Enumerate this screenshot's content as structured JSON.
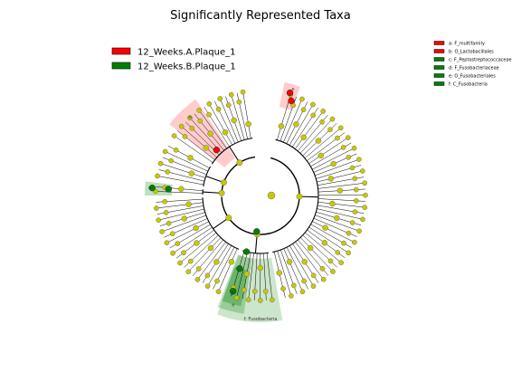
{
  "chart_data": {
    "type": "cladogram",
    "title": "Significantly Represented Taxa",
    "groups": [
      {
        "name": "12_Weeks.A.Plaque_1",
        "color": "#ff0000"
      },
      {
        "name": "12_Weeks.B.Plaque_1",
        "color": "#008000"
      }
    ],
    "biomarkers": [
      {
        "label": "a: F_multifamily",
        "group": "12_Weeks.A.Plaque_1",
        "color": "#ff0000"
      },
      {
        "label": "b: O_Lactobacillales",
        "group": "12_Weeks.A.Plaque_1",
        "color": "#ff0000"
      },
      {
        "label": "c: F_Peptostreptococcaceae",
        "group": "12_Weeks.B.Plaque_1",
        "color": "#008000"
      },
      {
        "label": "d: F_Fusobacteriaceae",
        "group": "12_Weeks.B.Plaque_1",
        "color": "#008000"
      },
      {
        "label": "e: O_Fusobacteriales",
        "group": "12_Weeks.B.Plaque_1",
        "color": "#008000"
      },
      {
        "label": "f: C_Fusobacteria",
        "group": "12_Weeks.B.Plaque_1",
        "color": "#008000"
      }
    ],
    "clade_labels": [
      "a",
      "b",
      "c",
      "d",
      "e",
      "f: Fusobacteria"
    ],
    "node_color": "#c8c800",
    "leaf_count": 96
  }
}
